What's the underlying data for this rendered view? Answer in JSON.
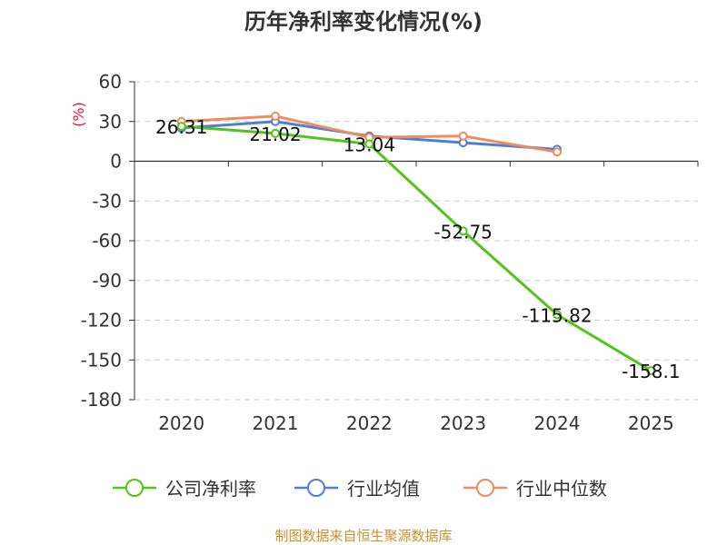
{
  "chart_data": {
    "type": "line",
    "title": "历年净利率变化情况(%)",
    "ylabel": "(%)",
    "categories": [
      "2020",
      "2021",
      "2022",
      "2023",
      "2024",
      "2025"
    ],
    "ylim": [
      -180,
      60
    ],
    "yticks": [
      60,
      30,
      0,
      -30,
      -60,
      -90,
      -120,
      -150,
      -180
    ],
    "series": [
      {
        "name": "公司净利率",
        "color": "#52c41a",
        "values": [
          26.31,
          21.02,
          13.04,
          -52.75,
          -115.82,
          -158.1
        ],
        "labels": [
          "26.31",
          "21.02",
          "13.04",
          "-52.75",
          "-115.82",
          "-158.1"
        ]
      },
      {
        "name": "行业均值",
        "color": "#4f7ed9",
        "values": [
          25,
          30,
          19,
          14,
          9,
          null
        ]
      },
      {
        "name": "行业中位数",
        "color": "#f08b5d",
        "values": [
          30,
          34,
          18,
          19,
          7,
          null
        ]
      }
    ],
    "grid": true,
    "legend_position": "bottom"
  },
  "footer": "制图数据来自恒生聚源数据库"
}
